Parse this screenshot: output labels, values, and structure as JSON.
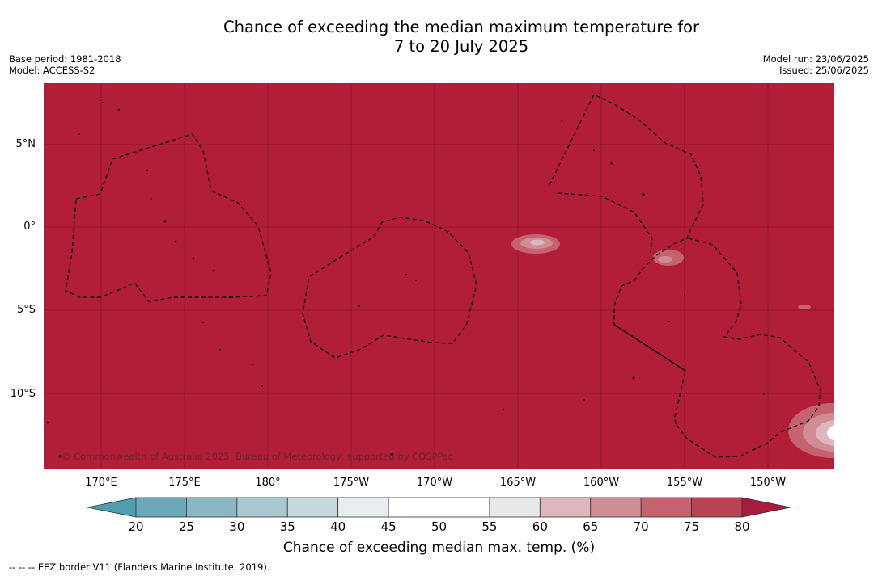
{
  "title_line1": "Chance of exceeding the median maximum temperature for",
  "title_line2": "7 to 20 July 2025",
  "base_period": "Base period: 1981-2018",
  "model": "Model: ACCESS-S2",
  "model_run": "Model run: 23/06/2025",
  "issued": "Issued: 25/06/2025",
  "copyright": "© Commonwealth of Australia 2025, Bureau of Meteorology, supported by COSPPac",
  "lat_labels": [
    "5°N",
    "0°",
    "5°S",
    "10°S"
  ],
  "lon_labels": [
    "170°E",
    "175°E",
    "180°",
    "175°W",
    "170°W",
    "165°W",
    "160°W",
    "155°W",
    "150°W"
  ],
  "colorbar": {
    "ticks": [
      "20",
      "25",
      "30",
      "35",
      "40",
      "45",
      "50",
      "55",
      "60",
      "65",
      "70",
      "75",
      "80"
    ],
    "label": "Chance of exceeding median max. temp. (%)",
    "colors": [
      "#69a9ba",
      "#89b7c4",
      "#a7c8ce",
      "#c6d8db",
      "#e8eef0",
      "#ffffff",
      "#ffffff",
      "#e8e8e8",
      "#ddb7bd",
      "#d18d95",
      "#c4636f",
      "#b84354"
    ],
    "low_color": "#4f9fb0",
    "high_color": "#a81b3a"
  },
  "map_fill_color": "#b21d38",
  "legend_eez": "--  --  -- EEZ border V11 (Flanders Marine Institute, 2019)."
}
